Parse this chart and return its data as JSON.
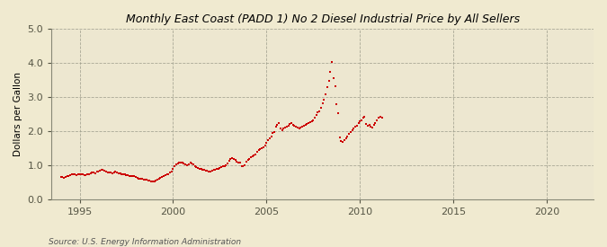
{
  "title": "Monthly East Coast (PADD 1) No 2 Diesel Industrial Price by All Sellers",
  "ylabel": "Dollars per Gallon",
  "source": "Source: U.S. Energy Information Administration",
  "plot_bg_color": "#EDE8D8",
  "fig_bg_color": "#F5EED8",
  "right_bg_color": "#F5F0E0",
  "dot_color": "#CC0000",
  "xlim": [
    1993.5,
    2022.5
  ],
  "ylim": [
    0.0,
    5.0
  ],
  "yticks": [
    0.0,
    1.0,
    2.0,
    3.0,
    4.0,
    5.0
  ],
  "xticks": [
    1995,
    2000,
    2005,
    2010,
    2015,
    2020
  ],
  "data": [
    [
      1994.0,
      0.65
    ],
    [
      1994.08,
      0.64
    ],
    [
      1994.17,
      0.63
    ],
    [
      1994.25,
      0.64
    ],
    [
      1994.33,
      0.67
    ],
    [
      1994.42,
      0.68
    ],
    [
      1994.5,
      0.7
    ],
    [
      1994.58,
      0.72
    ],
    [
      1994.67,
      0.73
    ],
    [
      1994.75,
      0.72
    ],
    [
      1994.83,
      0.7
    ],
    [
      1994.92,
      0.72
    ],
    [
      1995.0,
      0.74
    ],
    [
      1995.08,
      0.73
    ],
    [
      1995.17,
      0.72
    ],
    [
      1995.25,
      0.7
    ],
    [
      1995.33,
      0.71
    ],
    [
      1995.42,
      0.72
    ],
    [
      1995.5,
      0.74
    ],
    [
      1995.58,
      0.76
    ],
    [
      1995.67,
      0.78
    ],
    [
      1995.75,
      0.77
    ],
    [
      1995.83,
      0.76
    ],
    [
      1995.92,
      0.8
    ],
    [
      1996.0,
      0.82
    ],
    [
      1996.08,
      0.84
    ],
    [
      1996.17,
      0.86
    ],
    [
      1996.25,
      0.85
    ],
    [
      1996.33,
      0.83
    ],
    [
      1996.42,
      0.81
    ],
    [
      1996.5,
      0.79
    ],
    [
      1996.58,
      0.78
    ],
    [
      1996.67,
      0.77
    ],
    [
      1996.75,
      0.76
    ],
    [
      1996.83,
      0.78
    ],
    [
      1996.92,
      0.8
    ],
    [
      1997.0,
      0.78
    ],
    [
      1997.08,
      0.76
    ],
    [
      1997.17,
      0.75
    ],
    [
      1997.25,
      0.74
    ],
    [
      1997.33,
      0.73
    ],
    [
      1997.42,
      0.72
    ],
    [
      1997.5,
      0.71
    ],
    [
      1997.58,
      0.7
    ],
    [
      1997.67,
      0.69
    ],
    [
      1997.75,
      0.68
    ],
    [
      1997.83,
      0.68
    ],
    [
      1997.92,
      0.67
    ],
    [
      1998.0,
      0.65
    ],
    [
      1998.08,
      0.63
    ],
    [
      1998.17,
      0.61
    ],
    [
      1998.25,
      0.6
    ],
    [
      1998.33,
      0.59
    ],
    [
      1998.42,
      0.58
    ],
    [
      1998.5,
      0.57
    ],
    [
      1998.58,
      0.56
    ],
    [
      1998.67,
      0.55
    ],
    [
      1998.75,
      0.54
    ],
    [
      1998.83,
      0.53
    ],
    [
      1998.92,
      0.52
    ],
    [
      1999.0,
      0.53
    ],
    [
      1999.08,
      0.55
    ],
    [
      1999.17,
      0.57
    ],
    [
      1999.25,
      0.6
    ],
    [
      1999.33,
      0.63
    ],
    [
      1999.42,
      0.66
    ],
    [
      1999.5,
      0.68
    ],
    [
      1999.58,
      0.7
    ],
    [
      1999.67,
      0.72
    ],
    [
      1999.75,
      0.74
    ],
    [
      1999.83,
      0.77
    ],
    [
      1999.92,
      0.82
    ],
    [
      2000.0,
      0.9
    ],
    [
      2000.08,
      0.98
    ],
    [
      2000.17,
      1.02
    ],
    [
      2000.25,
      1.05
    ],
    [
      2000.33,
      1.06
    ],
    [
      2000.42,
      1.07
    ],
    [
      2000.5,
      1.06
    ],
    [
      2000.58,
      1.04
    ],
    [
      2000.67,
      1.02
    ],
    [
      2000.75,
      1.0
    ],
    [
      2000.83,
      1.03
    ],
    [
      2000.92,
      1.06
    ],
    [
      2001.0,
      1.04
    ],
    [
      2001.08,
      1.01
    ],
    [
      2001.17,
      0.97
    ],
    [
      2001.25,
      0.94
    ],
    [
      2001.33,
      0.92
    ],
    [
      2001.42,
      0.9
    ],
    [
      2001.5,
      0.88
    ],
    [
      2001.58,
      0.86
    ],
    [
      2001.67,
      0.85
    ],
    [
      2001.75,
      0.84
    ],
    [
      2001.83,
      0.83
    ],
    [
      2001.92,
      0.82
    ],
    [
      2002.0,
      0.82
    ],
    [
      2002.08,
      0.83
    ],
    [
      2002.17,
      0.85
    ],
    [
      2002.25,
      0.87
    ],
    [
      2002.33,
      0.89
    ],
    [
      2002.42,
      0.9
    ],
    [
      2002.5,
      0.92
    ],
    [
      2002.58,
      0.94
    ],
    [
      2002.67,
      0.96
    ],
    [
      2002.75,
      0.98
    ],
    [
      2002.83,
      1.0
    ],
    [
      2002.92,
      1.04
    ],
    [
      2003.0,
      1.12
    ],
    [
      2003.08,
      1.18
    ],
    [
      2003.17,
      1.2
    ],
    [
      2003.25,
      1.18
    ],
    [
      2003.33,
      1.15
    ],
    [
      2003.42,
      1.1
    ],
    [
      2003.5,
      1.08
    ],
    [
      2003.58,
      1.06
    ],
    [
      2003.67,
      0.98
    ],
    [
      2003.75,
      0.96
    ],
    [
      2003.83,
      1.0
    ],
    [
      2003.92,
      1.1
    ],
    [
      2004.0,
      1.15
    ],
    [
      2004.08,
      1.18
    ],
    [
      2004.17,
      1.22
    ],
    [
      2004.25,
      1.25
    ],
    [
      2004.33,
      1.28
    ],
    [
      2004.42,
      1.32
    ],
    [
      2004.5,
      1.38
    ],
    [
      2004.58,
      1.43
    ],
    [
      2004.67,
      1.48
    ],
    [
      2004.75,
      1.5
    ],
    [
      2004.83,
      1.53
    ],
    [
      2004.92,
      1.57
    ],
    [
      2005.0,
      1.65
    ],
    [
      2005.08,
      1.72
    ],
    [
      2005.17,
      1.78
    ],
    [
      2005.25,
      1.85
    ],
    [
      2005.33,
      1.95
    ],
    [
      2005.42,
      1.98
    ],
    [
      2005.5,
      2.12
    ],
    [
      2005.58,
      2.18
    ],
    [
      2005.67,
      2.22
    ],
    [
      2005.75,
      2.08
    ],
    [
      2005.83,
      2.02
    ],
    [
      2005.92,
      2.08
    ],
    [
      2006.0,
      2.1
    ],
    [
      2006.08,
      2.13
    ],
    [
      2006.17,
      2.16
    ],
    [
      2006.25,
      2.2
    ],
    [
      2006.33,
      2.22
    ],
    [
      2006.42,
      2.18
    ],
    [
      2006.5,
      2.15
    ],
    [
      2006.58,
      2.12
    ],
    [
      2006.67,
      2.1
    ],
    [
      2006.75,
      2.08
    ],
    [
      2006.83,
      2.1
    ],
    [
      2006.92,
      2.13
    ],
    [
      2007.0,
      2.16
    ],
    [
      2007.08,
      2.18
    ],
    [
      2007.17,
      2.2
    ],
    [
      2007.25,
      2.23
    ],
    [
      2007.33,
      2.26
    ],
    [
      2007.42,
      2.28
    ],
    [
      2007.5,
      2.32
    ],
    [
      2007.58,
      2.38
    ],
    [
      2007.67,
      2.46
    ],
    [
      2007.75,
      2.54
    ],
    [
      2007.83,
      2.58
    ],
    [
      2007.92,
      2.68
    ],
    [
      2008.0,
      2.8
    ],
    [
      2008.08,
      2.93
    ],
    [
      2008.17,
      3.08
    ],
    [
      2008.25,
      3.28
    ],
    [
      2008.33,
      3.48
    ],
    [
      2008.42,
      3.74
    ],
    [
      2008.5,
      4.02
    ],
    [
      2008.58,
      3.55
    ],
    [
      2008.67,
      3.32
    ],
    [
      2008.75,
      2.78
    ],
    [
      2008.83,
      2.52
    ],
    [
      2008.92,
      1.82
    ],
    [
      2009.0,
      1.7
    ],
    [
      2009.08,
      1.68
    ],
    [
      2009.17,
      1.72
    ],
    [
      2009.25,
      1.78
    ],
    [
      2009.33,
      1.85
    ],
    [
      2009.42,
      1.92
    ],
    [
      2009.5,
      1.98
    ],
    [
      2009.58,
      2.02
    ],
    [
      2009.67,
      2.08
    ],
    [
      2009.75,
      2.12
    ],
    [
      2009.83,
      2.16
    ],
    [
      2009.92,
      2.22
    ],
    [
      2010.0,
      2.28
    ],
    [
      2010.08,
      2.32
    ],
    [
      2010.17,
      2.38
    ],
    [
      2010.25,
      2.42
    ],
    [
      2010.33,
      2.2
    ],
    [
      2010.42,
      2.15
    ],
    [
      2010.5,
      2.18
    ],
    [
      2010.58,
      2.12
    ],
    [
      2010.67,
      2.1
    ],
    [
      2010.75,
      2.18
    ],
    [
      2010.83,
      2.22
    ],
    [
      2010.92,
      2.3
    ],
    [
      2011.0,
      2.38
    ],
    [
      2011.08,
      2.42
    ],
    [
      2011.17,
      2.4
    ]
  ]
}
